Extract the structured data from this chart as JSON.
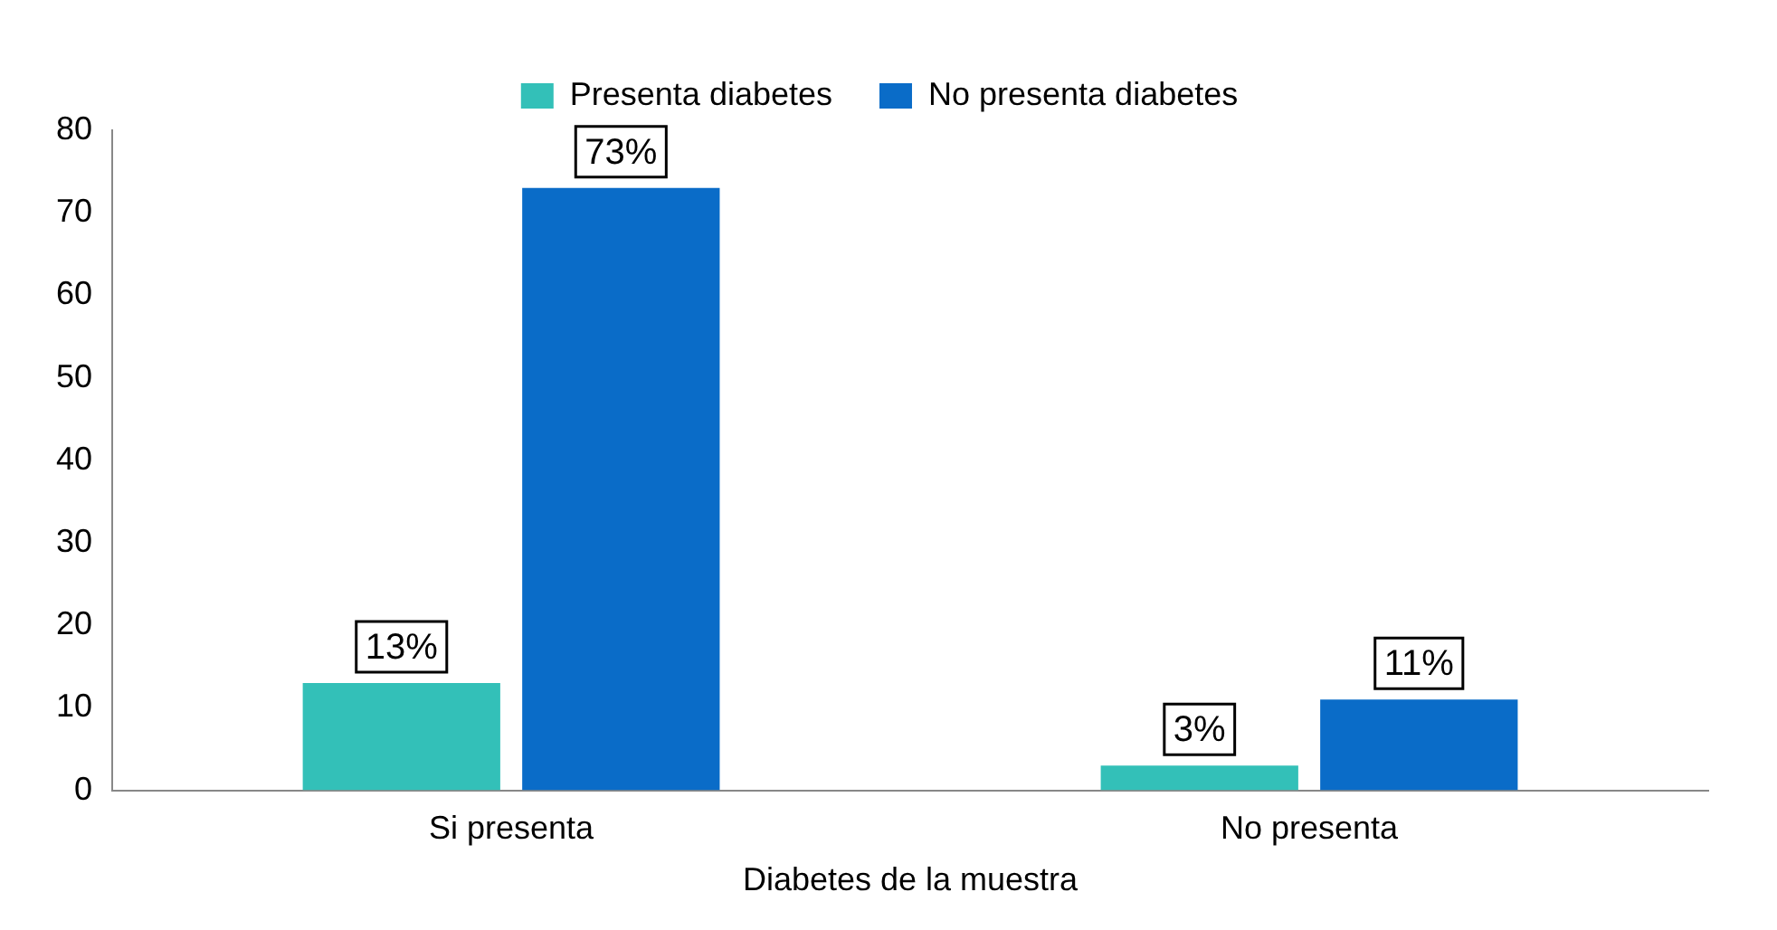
{
  "chart_data": {
    "type": "bar",
    "xlabel": "Diabetes de la muestra",
    "categories": [
      "Si presenta",
      "No presenta"
    ],
    "series": [
      {
        "name": "Presenta diabetes",
        "color": "#33c0b8",
        "values": [
          13,
          3
        ],
        "value_labels": [
          "13%",
          "3%"
        ]
      },
      {
        "name": "No presenta diabetes",
        "color": "#0a6cc8",
        "values": [
          73,
          11
        ],
        "value_labels": [
          "73%",
          "11%"
        ]
      }
    ],
    "ylim": [
      0,
      80
    ],
    "yticks": [
      0,
      10,
      20,
      30,
      40,
      50,
      60,
      70,
      80
    ],
    "grid": false,
    "legend": "top"
  }
}
